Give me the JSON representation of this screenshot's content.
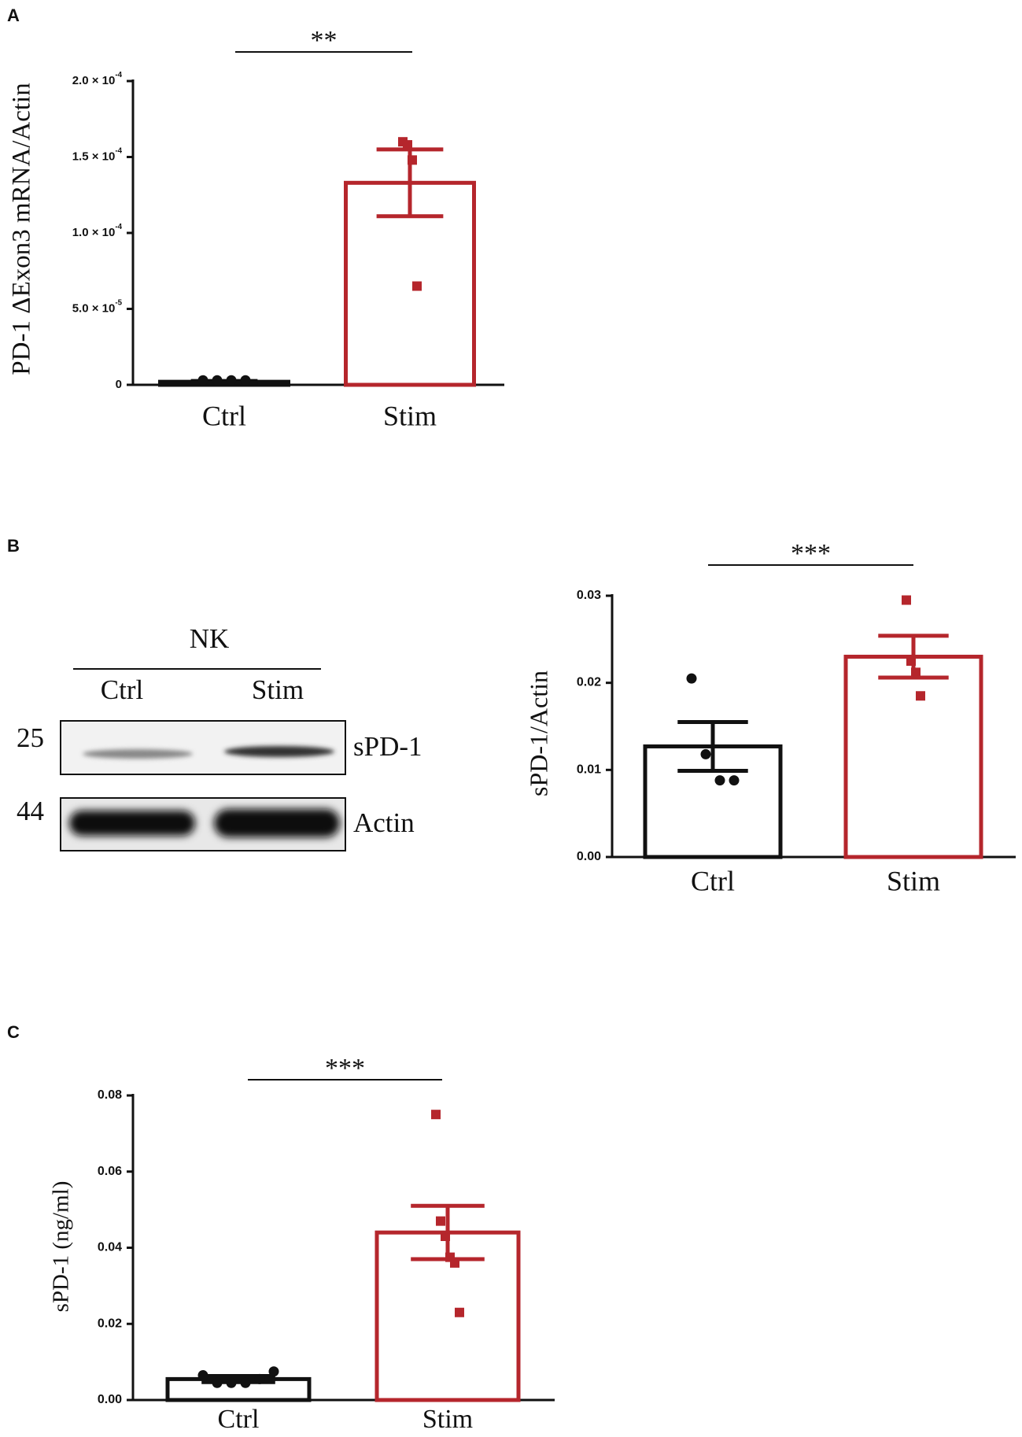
{
  "chart_data": [
    {
      "type": "bar",
      "panel_label": "A",
      "y_label": "PD-1 ΔExon3 mRNA/Actin",
      "annotation": "**",
      "categories": [
        "Ctrl",
        "Stim"
      ],
      "colors": [
        "#111111",
        "#b5262c"
      ],
      "values": [
        2e-06,
        0.000133
      ],
      "errors": [
        5e-07,
        2.2e-05
      ],
      "points": [
        [
          3e-06,
          3e-06,
          3e-06,
          3e-06
        ],
        [
          0.00016,
          0.000158,
          0.000148,
          6.5e-05
        ]
      ],
      "ylim": [
        0,
        0.0002
      ],
      "yticks": [
        0,
        {
          "value": 5e-05,
          "label": "5.0 × 10",
          "exponent": "-5"
        },
        {
          "value": 0.0001,
          "label": "1.0 × 10",
          "exponent": "-4"
        },
        {
          "value": 0.00015,
          "label": "1.5 × 10",
          "exponent": "-4"
        },
        {
          "value": 0.0002,
          "label": "2.0 × 10",
          "exponent": "-4"
        }
      ]
    },
    {
      "type": "bar",
      "panel_label": "B",
      "y_label": "sPD-1/Actin",
      "annotation": "***",
      "categories": [
        "Ctrl",
        "Stim"
      ],
      "colors": [
        "#111111",
        "#b5262c"
      ],
      "values": [
        0.0127,
        0.023
      ],
      "errors": [
        0.0028,
        0.0024
      ],
      "points": [
        [
          0.0205,
          0.0118,
          0.0088,
          0.0088
        ],
        [
          0.0295,
          0.0225,
          0.0212,
          0.0185
        ]
      ],
      "ylim": [
        0,
        0.03
      ],
      "yticks": [
        {
          "value": 0,
          "label": "0.00"
        },
        {
          "value": 0.01,
          "label": "0.01"
        },
        {
          "value": 0.02,
          "label": "0.02"
        },
        {
          "value": 0.03,
          "label": "0.03"
        }
      ]
    },
    {
      "type": "bar",
      "panel_label": "C",
      "y_label": "sPD-1 (ng/ml)",
      "annotation": "***",
      "categories": [
        "Ctrl",
        "Stim"
      ],
      "colors": [
        "#111111",
        "#b5262c"
      ],
      "values": [
        0.0055,
        0.044
      ],
      "errors": [
        0.0008,
        0.007
      ],
      "points": [
        [
          0.0065,
          0.0045,
          0.0045,
          0.0045,
          0.0055,
          0.0075
        ],
        [
          0.075,
          0.047,
          0.043,
          0.0375,
          0.036,
          0.023
        ]
      ],
      "ylim": [
        0,
        0.08
      ],
      "yticks": [
        {
          "value": 0,
          "label": "0.00"
        },
        {
          "value": 0.02,
          "label": "0.02"
        },
        {
          "value": 0.04,
          "label": "0.04"
        },
        {
          "value": 0.06,
          "label": "0.06"
        },
        {
          "value": 0.08,
          "label": "0.08"
        }
      ]
    }
  ],
  "blot": {
    "group": "NK",
    "lanes": [
      "Ctrl",
      "Stim"
    ],
    "markers": [
      "25",
      "44"
    ],
    "bands": [
      "sPD-1",
      "Actin"
    ]
  }
}
